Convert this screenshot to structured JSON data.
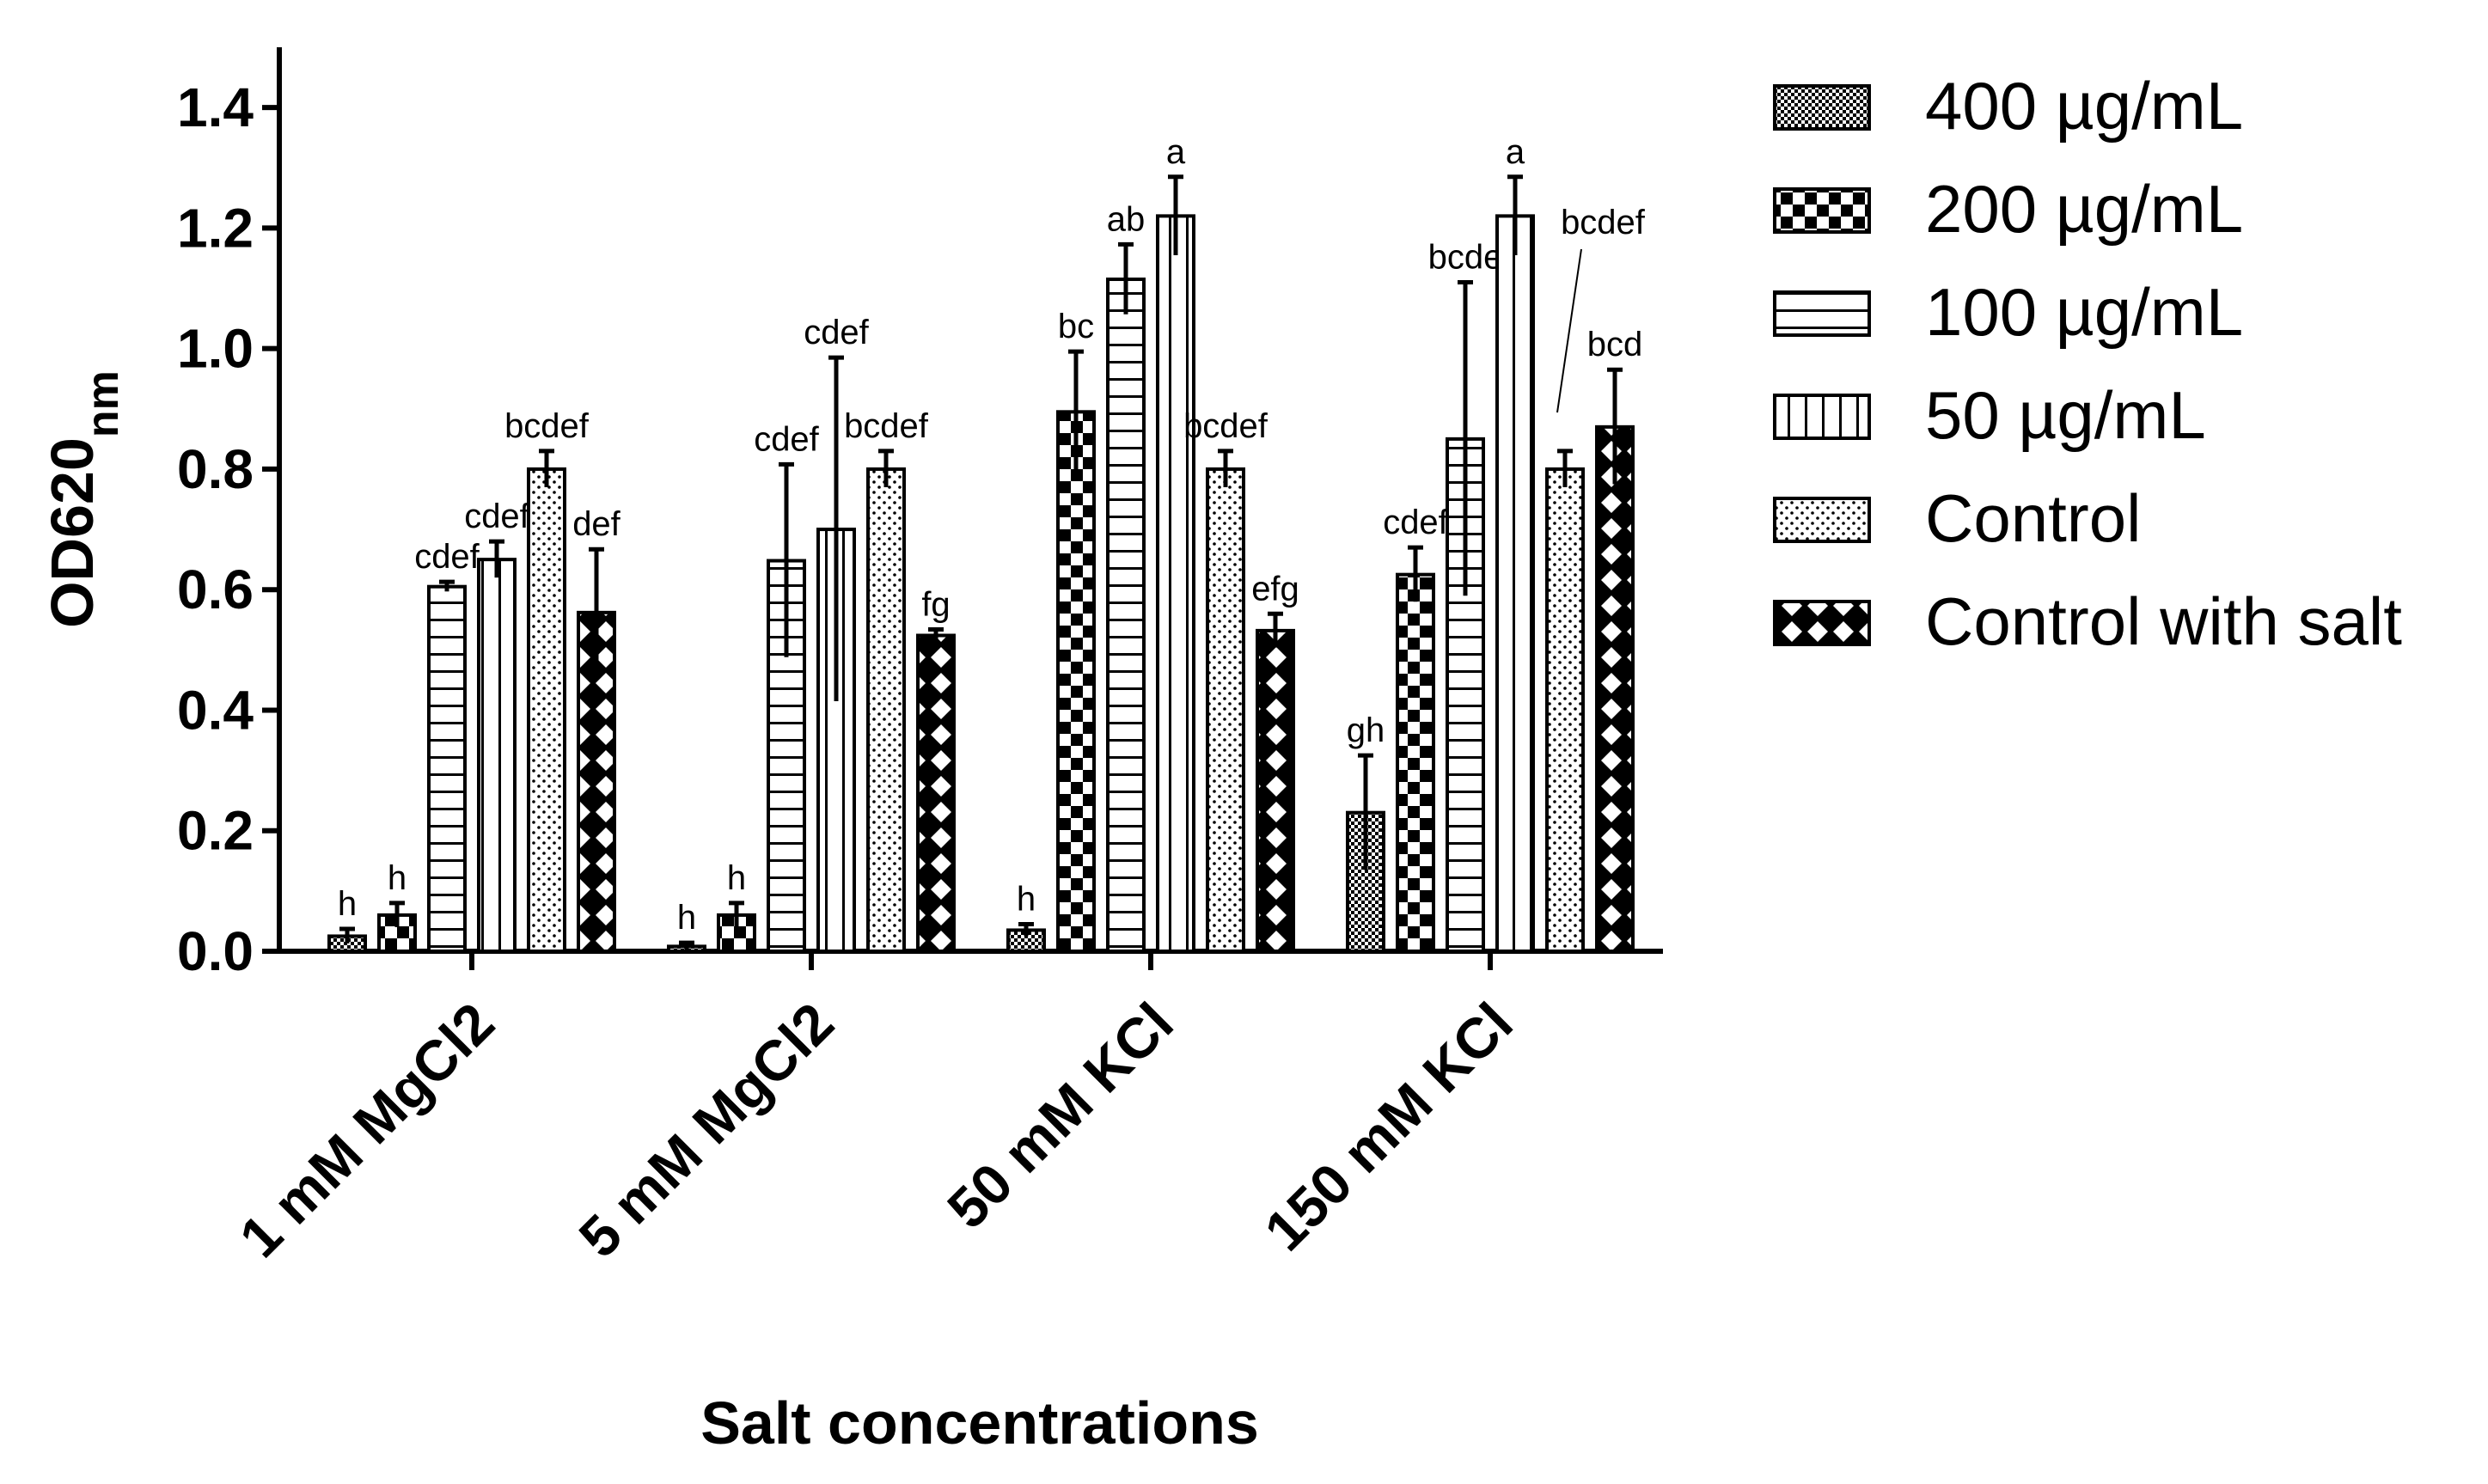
{
  "chart_data": {
    "type": "bar",
    "title": "",
    "xlabel": "Salt concentrations",
    "ylabel": "OD620",
    "ylabel_sub": "nm",
    "ylim": [
      0,
      1.5
    ],
    "yticks": [
      "0.0",
      "0.2",
      "0.4",
      "0.6",
      "0.8",
      "1.0",
      "1.2",
      "1.4"
    ],
    "categories": [
      "1 mM MgCl2",
      "5 mM MgCl2",
      "50 mM KCl",
      "150 mM KCl"
    ],
    "legend_position": "right",
    "series": [
      {
        "name": "400 µg/mL",
        "pattern": "fine-checker",
        "values": [
          0.025,
          0.008,
          0.035,
          0.23
        ],
        "errors": [
          0.012,
          0.006,
          0.01,
          0.095
        ],
        "sig": [
          "h",
          "h",
          "h",
          "gh"
        ]
      },
      {
        "name": "200 µg/mL",
        "pattern": "coarse-checker",
        "values": [
          0.06,
          0.06,
          0.895,
          0.625
        ],
        "errors": [
          0.02,
          0.02,
          0.1,
          0.045
        ],
        "sig": [
          "h",
          "h",
          "bc",
          "cdef"
        ]
      },
      {
        "name": "100 µg/mL",
        "pattern": "horizontal-lines",
        "values": [
          0.605,
          0.648,
          1.115,
          0.85
        ],
        "errors": [
          0.008,
          0.16,
          0.058,
          0.26
        ],
        "sig": [
          "cdef",
          "cdef",
          "ab",
          "bcde"
        ]
      },
      {
        "name": "50 µg/mL",
        "pattern": "vertical-lines",
        "values": [
          0.65,
          0.7,
          1.22,
          1.22
        ],
        "errors": [
          0.03,
          0.285,
          0.065,
          0.065
        ],
        "sig": [
          "cdef",
          "cdef",
          "a",
          "a"
        ]
      },
      {
        "name": "Control",
        "pattern": "dots",
        "values": [
          0.8,
          0.8,
          0.8,
          0.8
        ],
        "errors": [
          0.03,
          0.03,
          0.03,
          0.03
        ],
        "sig": [
          "bcdef",
          "bcdef",
          "bcdef",
          "bcdef"
        ]
      },
      {
        "name": "Control with salt",
        "pattern": "diamond-cross",
        "values": [
          0.562,
          0.524,
          0.532,
          0.87
        ],
        "errors": [
          0.105,
          0.01,
          0.028,
          0.095
        ],
        "sig": [
          "def",
          "fg",
          "efg",
          "bcd"
        ]
      }
    ]
  }
}
